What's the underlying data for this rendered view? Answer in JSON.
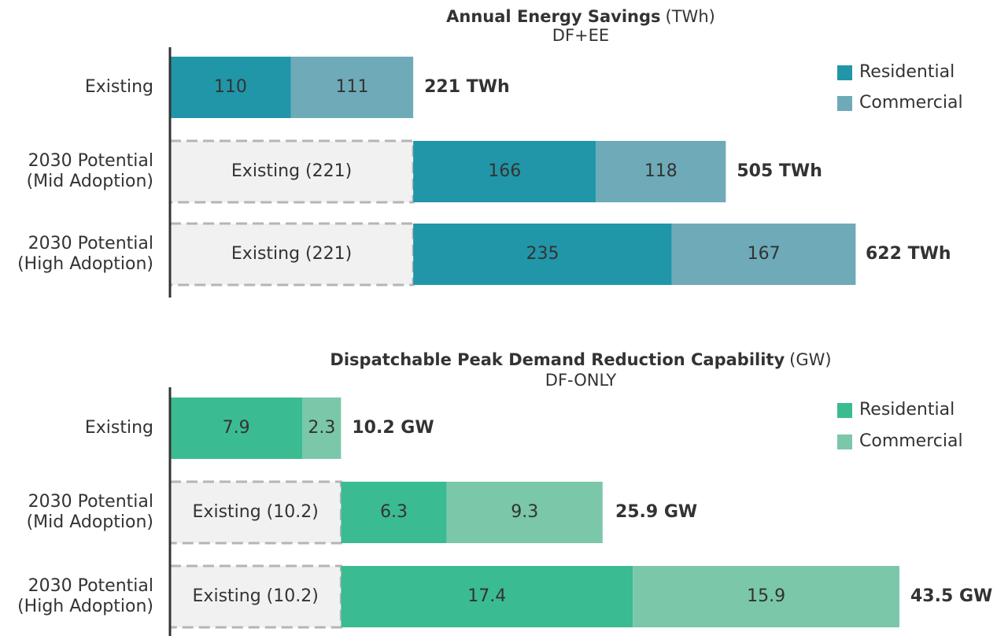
{
  "chart_data": [
    {
      "type": "stacked-bar-horizontal",
      "title": "Annual Energy Savings",
      "unit": "(TWh)",
      "subtitle": "DF+EE",
      "categories": [
        "Existing",
        "2030 Potential (Mid Adoption)",
        "2030 Potential (High Adoption)"
      ],
      "series": [
        {
          "name": "Existing",
          "legend": false,
          "color": "#f1f1f1",
          "values": [
            null,
            221,
            221
          ],
          "value_labels": [
            null,
            "Existing (221)",
            "Existing (221)"
          ]
        },
        {
          "name": "Residential",
          "color": "#2196a8",
          "values": [
            110,
            166,
            235
          ]
        },
        {
          "name": "Commercial",
          "color": "#6eaab8",
          "values": [
            111,
            118,
            167
          ]
        }
      ],
      "totals": [
        221,
        505,
        622
      ],
      "total_labels": [
        "221 TWh",
        "505 TWh",
        "622 TWh"
      ],
      "total_color": "#1f7a8c",
      "xlim": [
        0,
        622
      ]
    },
    {
      "type": "stacked-bar-horizontal",
      "title": "Dispatchable Peak Demand Reduction Capability",
      "unit": "(GW)",
      "subtitle": "DF-ONLY",
      "categories": [
        "Existing",
        "2030 Potential (Mid Adoption)",
        "2030 Potential (High Adoption)"
      ],
      "series": [
        {
          "name": "Existing",
          "legend": false,
          "color": "#f1f1f1",
          "values": [
            null,
            10.2,
            10.2
          ],
          "value_labels": [
            null,
            "Existing (10.2)",
            "Existing (10.2)"
          ]
        },
        {
          "name": "Residential",
          "color": "#3bbb92",
          "values": [
            7.9,
            6.3,
            17.4
          ]
        },
        {
          "name": "Commercial",
          "color": "#7bc7a9",
          "values": [
            2.3,
            9.3,
            15.9
          ]
        }
      ],
      "totals": [
        10.2,
        25.9,
        43.5
      ],
      "total_labels": [
        "10.2 GW",
        "25.9 GW",
        "43.5 GW"
      ],
      "total_color": "#2e9c75",
      "xlim": [
        0,
        43.5
      ]
    }
  ]
}
